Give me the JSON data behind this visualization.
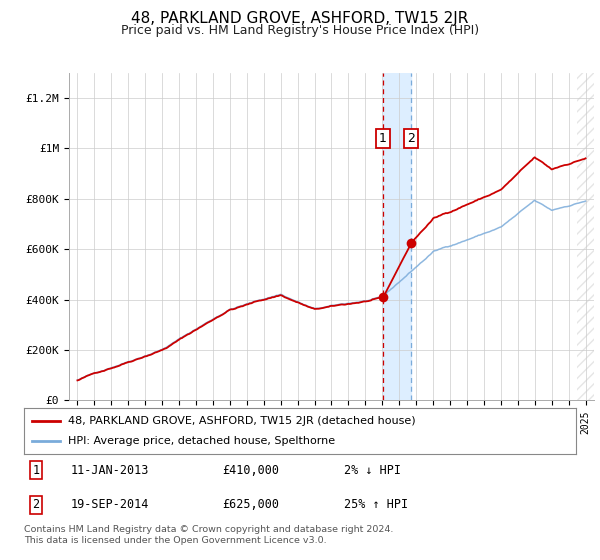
{
  "title": "48, PARKLAND GROVE, ASHFORD, TW15 2JR",
  "subtitle": "Price paid vs. HM Land Registry's House Price Index (HPI)",
  "xlim_start": 1994.5,
  "xlim_end": 2025.5,
  "ylim": [
    0,
    1300000
  ],
  "yticks": [
    0,
    200000,
    400000,
    600000,
    800000,
    1000000,
    1200000
  ],
  "ytick_labels": [
    "£0",
    "£200K",
    "£400K",
    "£600K",
    "£800K",
    "£1M",
    "£1.2M"
  ],
  "sale1_date": 2013.03,
  "sale1_price": 410000,
  "sale1_label": "1",
  "sale2_date": 2014.72,
  "sale2_price": 625000,
  "sale2_label": "2",
  "line1_color": "#cc0000",
  "line2_color": "#7aabda",
  "highlight_color": "#ddeeff",
  "legend_line1": "48, PARKLAND GROVE, ASHFORD, TW15 2JR (detached house)",
  "legend_line2": "HPI: Average price, detached house, Spelthorne",
  "table_row1": [
    "1",
    "11-JAN-2013",
    "£410,000",
    "2% ↓ HPI"
  ],
  "table_row2": [
    "2",
    "19-SEP-2014",
    "£625,000",
    "25% ↑ HPI"
  ],
  "footer": "Contains HM Land Registry data © Crown copyright and database right 2024.\nThis data is licensed under the Open Government Licence v3.0.",
  "title_fontsize": 11,
  "subtitle_fontsize": 9,
  "tick_fontsize": 8
}
